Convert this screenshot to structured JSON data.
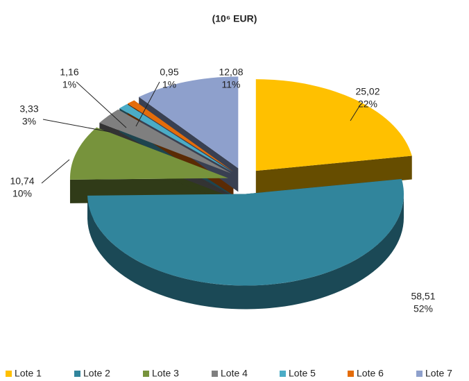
{
  "chart_data": {
    "type": "pie3d",
    "title": "(10⁶ EUR)",
    "categories": [
      "Lote 1",
      "Lote 2",
      "Lote 3",
      "Lote 4",
      "Lote 5",
      "Lote 6",
      "Lote 7"
    ],
    "values": [
      25.02,
      58.51,
      10.74,
      3.33,
      1.16,
      0.95,
      12.08
    ],
    "value_labels": [
      "25,02",
      "58,51",
      "10,74",
      "3,33",
      "1,16",
      "0,95",
      "12,08"
    ],
    "percent_labels": [
      "22%",
      "52%",
      "10%",
      "3%",
      "1%",
      "1%",
      "11%"
    ],
    "colors": [
      "#ffc000",
      "#31859c",
      "#77933c",
      "#7f7f7f",
      "#4bacc6",
      "#e46c0a",
      "#8ea0cc"
    ],
    "legend": "bottom"
  }
}
